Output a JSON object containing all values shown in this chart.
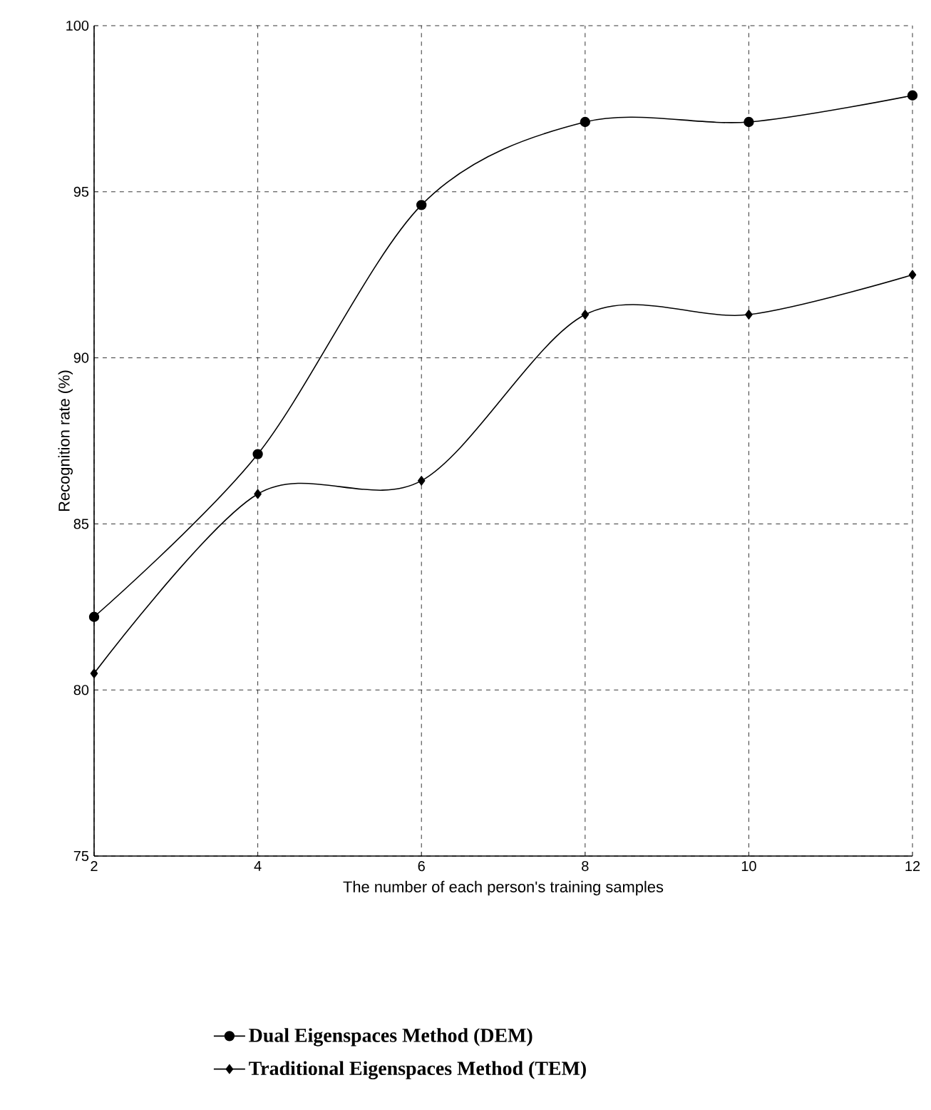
{
  "chart_data": {
    "type": "line",
    "xlabel": "The number of each person's training samples",
    "ylabel": "Recognition rate (%)",
    "x": [
      2,
      4,
      6,
      8,
      10,
      12
    ],
    "series": [
      {
        "name": "Dual Eigenspaces Method (DEM)",
        "color": "#000000",
        "marker": "circle",
        "values": [
          82.2,
          87.1,
          94.6,
          97.1,
          97.1,
          97.9
        ]
      },
      {
        "name": "Traditional Eigenspaces Method (TEM)",
        "color": "#000000",
        "marker": "diamond",
        "values": [
          80.5,
          85.9,
          86.3,
          91.3,
          91.3,
          92.5
        ]
      }
    ],
    "xlim": [
      2,
      12
    ],
    "xticks": [
      2,
      4,
      6,
      8,
      10,
      12
    ],
    "ylim": [
      75,
      100
    ],
    "yticks": [
      75,
      80,
      85,
      90,
      95,
      100
    ],
    "grid": true,
    "legend": "bottom",
    "line_style": "solid"
  }
}
